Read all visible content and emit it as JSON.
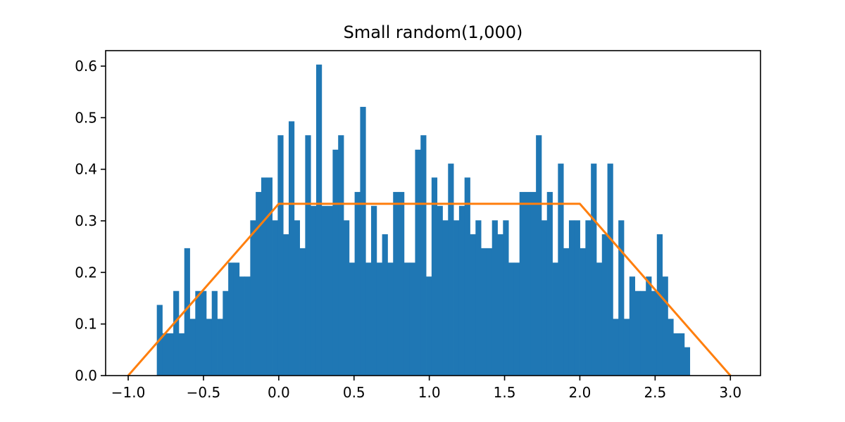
{
  "chart_data": {
    "type": "bar",
    "title": "Small random(1,000)",
    "xlabel": "",
    "ylabel": "",
    "xlim": [
      -1.15,
      3.2
    ],
    "ylim": [
      0,
      0.63
    ],
    "grid": false,
    "xticks": [
      -1.0,
      -0.5,
      0.0,
      0.5,
      1.0,
      1.5,
      2.0,
      2.5,
      3.0
    ],
    "xtick_labels": [
      "−1.0",
      "−0.5",
      "0.0",
      "0.5",
      "1.0",
      "1.5",
      "2.0",
      "2.5",
      "3.0"
    ],
    "yticks": [
      0.0,
      0.1,
      0.2,
      0.3,
      0.4,
      0.5,
      0.6
    ],
    "ytick_labels": [
      "0.0",
      "0.1",
      "0.2",
      "0.3",
      "0.4",
      "0.5",
      "0.6"
    ],
    "histogram": {
      "bin_start": -0.81,
      "bin_width": 0.0365,
      "color": "#1f77b4",
      "values": [
        0.137,
        0.082,
        0.082,
        0.164,
        0.082,
        0.247,
        0.11,
        0.164,
        0.164,
        0.11,
        0.164,
        0.11,
        0.164,
        0.219,
        0.219,
        0.192,
        0.192,
        0.301,
        0.356,
        0.384,
        0.384,
        0.301,
        0.466,
        0.274,
        0.493,
        0.301,
        0.247,
        0.466,
        0.329,
        0.603,
        0.329,
        0.329,
        0.438,
        0.466,
        0.301,
        0.219,
        0.356,
        0.521,
        0.219,
        0.329,
        0.219,
        0.274,
        0.219,
        0.356,
        0.356,
        0.219,
        0.219,
        0.438,
        0.466,
        0.192,
        0.384,
        0.329,
        0.301,
        0.411,
        0.301,
        0.329,
        0.384,
        0.274,
        0.301,
        0.247,
        0.247,
        0.301,
        0.274,
        0.301,
        0.219,
        0.219,
        0.356,
        0.356,
        0.356,
        0.466,
        0.301,
        0.356,
        0.219,
        0.411,
        0.247,
        0.301,
        0.301,
        0.247,
        0.301,
        0.411,
        0.219,
        0.274,
        0.411,
        0.11,
        0.301,
        0.11,
        0.192,
        0.164,
        0.164,
        0.192,
        0.164,
        0.274,
        0.192,
        0.11,
        0.082,
        0.082,
        0.055
      ]
    },
    "series": [
      {
        "type": "line",
        "color": "#ff7f0e",
        "x": [
          -1.0,
          0.0,
          2.0,
          3.0
        ],
        "y": [
          0.0,
          0.333,
          0.333,
          0.0
        ]
      }
    ]
  }
}
